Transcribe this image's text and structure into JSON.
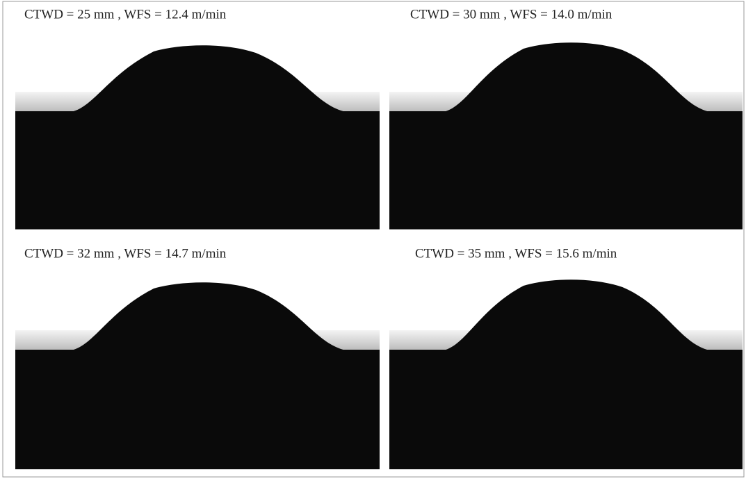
{
  "panels": [
    {
      "label": "CTWD = 25 mm , WFS = 12.4 m/min"
    },
    {
      "label": "CTWD = 30 mm , WFS = 14.0 m/min"
    },
    {
      "label": "CTWD = 32 mm , WFS = 14.7 m/min"
    },
    {
      "label": "CTWD = 35 mm , WFS = 15.6 m/min"
    }
  ]
}
